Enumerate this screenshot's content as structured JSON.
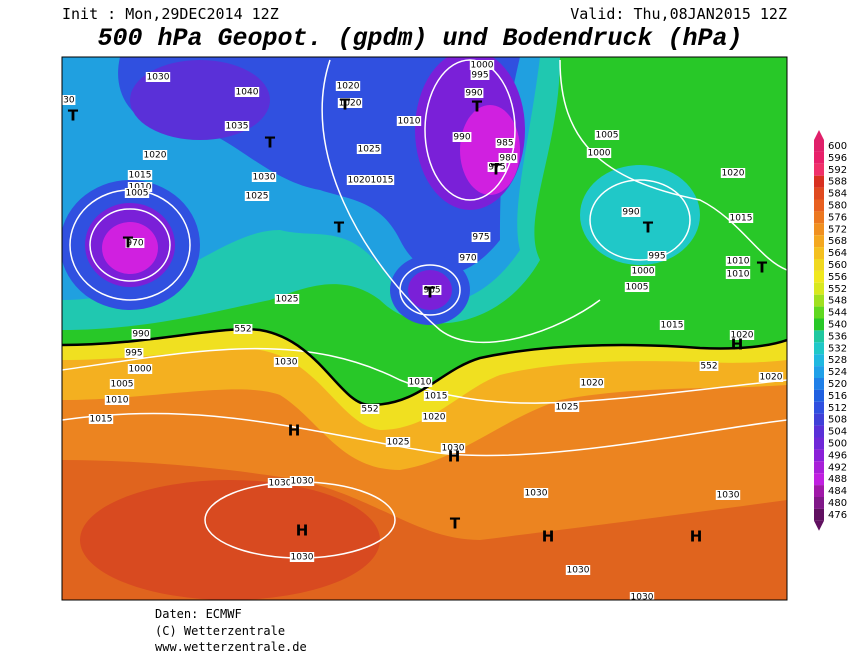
{
  "header": {
    "init": "Init : Mon,29DEC2014 12Z",
    "valid": "Valid: Thu,08JAN2015 12Z",
    "title": "500 hPa Geopot. (gpdm) und Bodendruck (hPa)"
  },
  "colorbar": {
    "labels": [
      600,
      596,
      592,
      588,
      584,
      580,
      576,
      572,
      568,
      564,
      560,
      556,
      552,
      548,
      544,
      540,
      536,
      532,
      528,
      524,
      520,
      516,
      512,
      508,
      504,
      500,
      496,
      492,
      488,
      484,
      480,
      476
    ]
  },
  "map": {
    "labels": [
      "030",
      "1030",
      "1040",
      "1020",
      "1020",
      "1035",
      "1030",
      "1025",
      "1025",
      "1020",
      "1015",
      "1010",
      "1000",
      "995",
      "990",
      "990",
      "985",
      "980",
      "975",
      "1005",
      "1000",
      "1020",
      "1015",
      "990",
      "995",
      "1000",
      "1005",
      "1010",
      "1010",
      "975",
      "970",
      "965",
      "1020",
      "1015",
      "1010",
      "1005",
      "970",
      "1025",
      "552",
      "990",
      "995",
      "1000",
      "1005",
      "1010",
      "1015",
      "1030",
      "552",
      "1010",
      "1015",
      "1020",
      "1025",
      "1030",
      "1030",
      "1030",
      "1030",
      "1030",
      "1030",
      "1030",
      "1030",
      "1020",
      "1025",
      "1015",
      "1020",
      "552",
      "1020"
    ],
    "markers": [
      "T",
      "T",
      "T",
      "T",
      "T",
      "T",
      "T",
      "T",
      "T",
      "T",
      "H",
      "H",
      "H",
      "H",
      "T",
      "H",
      "H"
    ]
  },
  "footer": {
    "lines": [
      "Daten: ECMWF",
      "(C) Wetterzentrale",
      "www.wetterzentrale.de"
    ]
  }
}
